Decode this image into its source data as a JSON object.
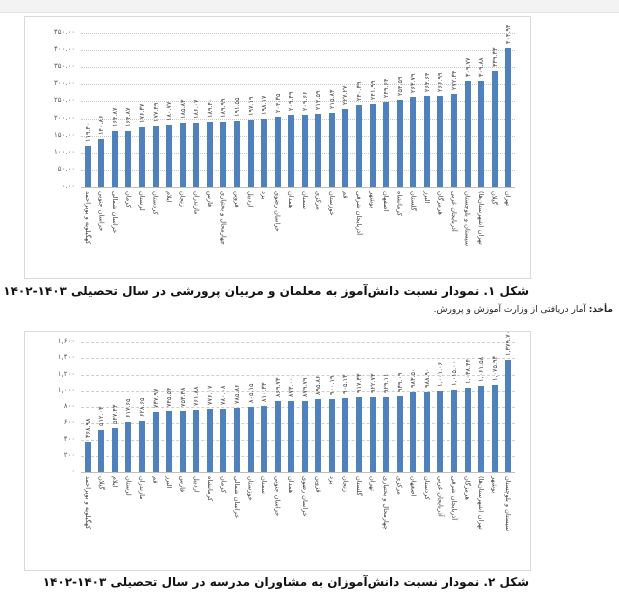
{
  "chart_data": [
    {
      "type": "bar",
      "title": "شکل ۱. نمودار نسبت دانش‌آموز به معلمان و مربیان پرورشی در سال تحصیلی ۱۴۰۳-۱۴۰۲",
      "xlabel": "",
      "ylabel": "",
      "ylim": [
        0,
        450
      ],
      "yticks": [
        "۰.۰۰",
        "۵۰.۰۰",
        "۱۰۰.۰۰",
        "۱۵۰.۰۰",
        "۲۰۰.۰۰",
        "۲۵۰.۰۰",
        "۳۰۰.۰۰",
        "۳۵۰.۰۰",
        "۴۰۰.۰۰",
        "۴۵۰.۰۰"
      ],
      "grid": true,
      "categories": [
        "کهگیلویه و بویراحمد",
        "خراسان جنوبی",
        "خراسان شمالی",
        "کرمان",
        "لرستان",
        "کردستان",
        "ایلام",
        "زنجان",
        "مازندران",
        "فارس",
        "چهارمحال و بختیاری",
        "قزوین",
        "اردبیل",
        "یزد",
        "خراسان رضوی",
        "همدان",
        "سمنان",
        "مرکزی",
        "خوزستان",
        "قم",
        "آذربایجان شرقی",
        "بوشهر",
        "اصفهان",
        "کرمانشاه",
        "گلستان",
        "البرز",
        "هرمزگان",
        "آذربایجان غربی",
        "سیستان و بلوچستان",
        "تهران (شهرستان‌ها)",
        "گیلان",
        "تهران"
      ],
      "values": [
        119.4,
        140.86,
        164.87,
        164.87,
        176.37,
        177.49,
        180.77,
        185.83,
        186.07,
        189.4,
        189.99,
        191.55,
        197.19,
        198.17,
        204.35,
        209.49,
        209.66,
        212.59,
        215.83,
        227.27,
        240.39,
        241.99,
        249.64,
        254.59,
        263.79,
        264.64,
        266.99,
        272.34,
        309.77,
        309.88,
        339.33,
        404.94
      ],
      "value_labels": [
        "۱۱۹.۴۰",
        "۱۴۰.۸۶",
        "۱۶۴.۸۷",
        "۱۶۴.۸۷",
        "۱۷۶.۳۷",
        "۱۷۷.۴۹",
        "۱۸۰.۷۷",
        "۱۸۵.۸۳",
        "۱۸۶.۰۷",
        "۱۸۹.۴۰",
        "۱۸۹.۹۹",
        "۱۹۱.۵۵",
        "۱۹۷.۱۹",
        "۱۹۸.۱۷",
        "۲۰۴.۳۵",
        "۲۰۹.۴۹",
        "۲۰۹.۶۶",
        "۲۱۲.۵۹",
        "۲۱۵.۸۳",
        "۲۲۷.۲۷",
        "۲۴۰.۳۹",
        "۲۴۱.۹۹",
        "۲۴۹.۶۴",
        "۲۵۴.۵۹",
        "۲۶۳.۷۹",
        "۲۶۴.۶۴",
        "۲۶۶.۹۹",
        "۲۷۲.۳۴",
        "۳۰۹.۷۷",
        "۳۰۹.۸۸",
        "۳۳۹.۳۳",
        "۴۰۴.۹۴"
      ],
      "bar_color": "#4f81bd"
    },
    {
      "type": "bar",
      "title": "شکل ۲. نمودار نسبت دانش‌آموزان به مشاوران مدرسه در سال تحصیلی ۱۴۰۳-۱۴۰۲",
      "xlabel": "",
      "ylabel": "",
      "ylim": [
        0,
        1600
      ],
      "yticks": [
        "۰",
        "۲۰۰",
        "۴۰۰",
        "۶۰۰",
        "۸۰۰",
        "۱,۰۰۰",
        "۱,۲۰۰",
        "۱,۴۰۰",
        "۱,۶۰۰"
      ],
      "grid": true,
      "categories": [
        "کهگیلویه و بویراحمد",
        "گیلان",
        "ایلام",
        "لرستان",
        "مازندران",
        "قم",
        "البرز",
        "فارس",
        "اردبیل",
        "کرمانشاه",
        "کرمان",
        "خراسان شمالی",
        "خوزستان",
        "سمنان",
        "خراسان جنوبی",
        "همدان",
        "خراسان رضوی",
        "قزوین",
        "یزد",
        "زنجان",
        "گلستان",
        "تهران",
        "چهارمحال و بختیاری",
        "مرکزی",
        "اصفهان",
        "کردستان",
        "آذربایجان غربی",
        "آذربایجان شرقی",
        "هرمزگان",
        "تهران (شهرستان‌ها)",
        "بوشهر",
        "سیستان و بلوچستان"
      ],
      "values": [
        368.98,
        512.03,
        547.43,
        617.65,
        628.65,
        737.97,
        745.54,
        753.38,
        761.88,
        776.07,
        780.08,
        785.86,
        805.15,
        810.33,
        869.73,
        873.0,
        879.79,
        895.86,
        900.19,
        905.13,
        917.33,
        922.73,
        929.11,
        939.09,
        983.5,
        988.9,
        1001.06,
        1015.0,
        1038.44,
        1061.58,
        1075.93,
        1379.7
      ],
      "value_labels": [
        "۳۶۸.۹۸",
        "۵۱۲.۰۳",
        "۵۴۷.۴۳",
        "۶۱۷.۶۵",
        "۶۲۸.۶۵",
        "۷۳۷.۹۷",
        "۷۴۵.۵۴",
        "۷۵۳.۳۸",
        "۷۶۱.۸۸",
        "۷۷۶.۰۷",
        "۷۸۰.۰۸",
        "۷۸۵.۸۶",
        "۸۰۵.۱۵",
        "۸۱۰.۳۳",
        "۸۶۹.۷۳",
        "۸۷۳.۰۰",
        "۸۷۹.۷۹",
        "۸۹۵.۸۶",
        "۹۰۰.۱۹",
        "۹۰۵.۱۳",
        "۹۱۷.۳۳",
        "۹۲۲.۷۳",
        "۹۲۹.۱۱",
        "۹۳۹.۰۹",
        "۹۸۳.۵۰",
        "۹۸۸.۹۰",
        "۱,۰۰۱.۰۶",
        "۱,۰۱۵.۰۰",
        "۱,۰۳۸.۴۴",
        "۱,۰۶۱.۵۸",
        "۱,۰۷۵.۹۳",
        "۱,۳۷۹.۷۰"
      ],
      "bar_color": "#4f81bd"
    }
  ],
  "figure1": {
    "caption": "شکل ۱. نمودار نسبت دانش‌آموز به معلمان و مربیان پرورشی در سال تحصیلی ۱۴۰۳-۱۴۰۲",
    "source_label": "مأخذ:",
    "source_text": " آمار دریافتی از وزارت آموزش و پرورش."
  },
  "figure2": {
    "caption": "شکل ۲. نمودار نسبت دانش‌آموزان به مشاوران مدرسه در سال تحصیلی ۱۴۰۳-۱۴۰۲"
  }
}
